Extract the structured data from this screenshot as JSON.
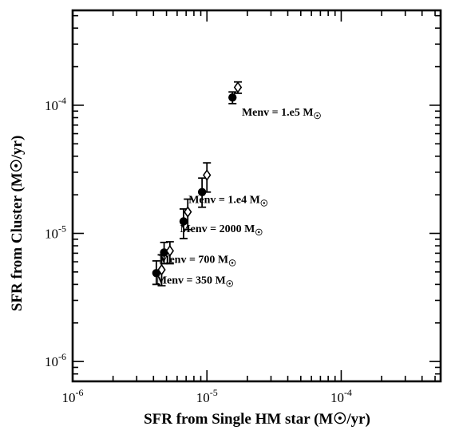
{
  "chart_data": {
    "type": "scatter",
    "xlabel": "SFR from Single HM star (M☉/yr)",
    "ylabel": "SFR from Cluster (M☉/yr)",
    "x_scale": "log",
    "y_scale": "log",
    "xlim": [
      1e-06,
      0.00055
    ],
    "ylim": [
      7e-07,
      0.00055
    ],
    "x_ticks": [
      {
        "value": 1e-06,
        "mantissa": "10",
        "exp": "-6"
      },
      {
        "value": 1e-05,
        "mantissa": "10",
        "exp": "-5"
      },
      {
        "value": 0.0001,
        "mantissa": "10",
        "exp": "-4"
      }
    ],
    "y_ticks": [
      {
        "value": 1e-06,
        "mantissa": "10",
        "exp": "-6"
      },
      {
        "value": 1e-05,
        "mantissa": "10",
        "exp": "-5"
      },
      {
        "value": 0.0001,
        "mantissa": "10",
        "exp": "-4"
      }
    ],
    "series": [
      {
        "marker": "filled-circle",
        "points": [
          {
            "x": 4.2e-06,
            "y": 4.9e-06,
            "err_low": 4e-06,
            "err_high": 6.1e-06
          },
          {
            "x": 4.8e-06,
            "y": 7.1e-06,
            "err_low": 5.8e-06,
            "err_high": 8.5e-06
          },
          {
            "x": 6.7e-06,
            "y": 1.24e-05,
            "err_low": 9.1e-06,
            "err_high": 1.55e-05
          },
          {
            "x": 9.2e-06,
            "y": 2.1e-05,
            "err_low": 1.6e-05,
            "err_high": 2.7e-05
          },
          {
            "x": 1.55e-05,
            "y": 0.000115,
            "err_low": 0.000103,
            "err_high": 0.000127
          }
        ]
      },
      {
        "marker": "open-diamond",
        "points": [
          {
            "x": 4.6e-06,
            "y": 5.2e-06,
            "err_low": 3.9e-06,
            "err_high": 6.8e-06
          },
          {
            "x": 5.3e-06,
            "y": 7.3e-06,
            "err_low": 5.8e-06,
            "err_high": 8.6e-06
          },
          {
            "x": 7.2e-06,
            "y": 1.47e-05,
            "err_low": 1.07e-05,
            "err_high": 1.85e-05
          },
          {
            "x": 1e-05,
            "y": 2.85e-05,
            "err_low": 2.1e-05,
            "err_high": 3.55e-05
          },
          {
            "x": 1.7e-05,
            "y": 0.000138,
            "err_low": 0.000124,
            "err_high": 0.000152
          }
        ]
      }
    ],
    "annotations": [
      {
        "text": "Menv = 1.e5 M☉",
        "x": 1.82e-05,
        "y": 8.3e-05
      },
      {
        "text": "Menv = 1.e4 M☉",
        "x": 7.3e-06,
        "y": 1.72e-05
      },
      {
        "text": "Menv = 2000 M☉",
        "x": 6.3e-06,
        "y": 1.02e-05
      },
      {
        "text": "Menv = 700 M☉",
        "x": 4.4e-06,
        "y": 5.9e-06
      },
      {
        "text": "Menv = 350 M☉",
        "x": 4.2e-06,
        "y": 4.05e-06
      }
    ]
  }
}
